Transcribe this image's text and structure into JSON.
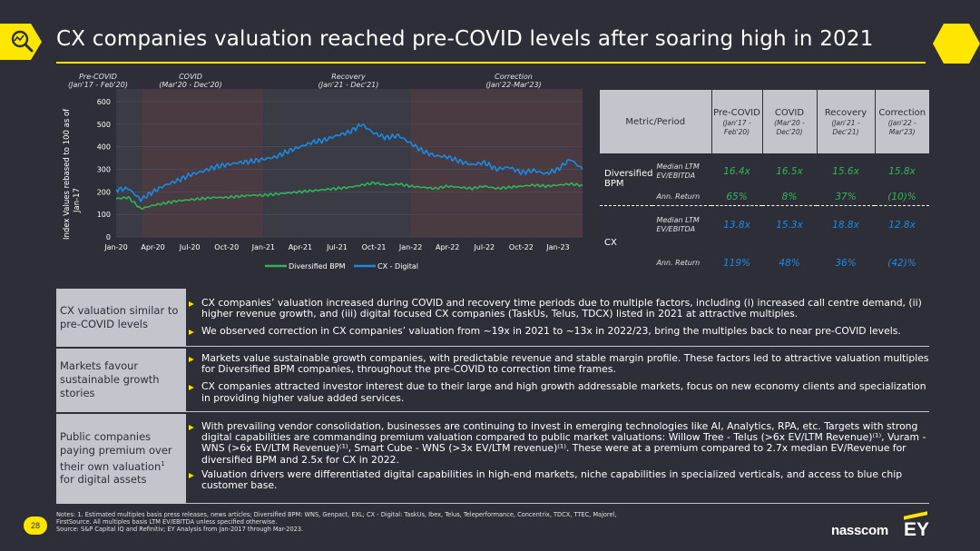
{
  "page": {
    "title": "CX companies valuation reached pre-COVID levels after soaring high in 2021",
    "page_number": "28"
  },
  "brand": {
    "accent": "#ffe600",
    "background": "#2e2e38",
    "logo_1": "nasscom",
    "logo_2": "EY"
  },
  "chart_data": {
    "type": "line",
    "ylabel": "Index Values rebased to 100 as of Jan-17",
    "ylim": [
      0,
      600
    ],
    "yticks": [
      "0",
      "100",
      "200",
      "300",
      "400",
      "500",
      "600"
    ],
    "xticks": [
      "Jan-20",
      "Apr-20",
      "Jul-20",
      "Oct-20",
      "Jan-21",
      "Apr-21",
      "Jul-21",
      "Oct-21",
      "Jan-22",
      "Apr-22",
      "Jul-22",
      "Oct-22",
      "Jan-23"
    ],
    "periods": [
      {
        "name": "Pre-COVID",
        "range": "(Jan'17 - Feb'20)"
      },
      {
        "name": "COVID",
        "range": "(Mar'20 - Dec'20)"
      },
      {
        "name": "Recovery",
        "range": "(Jan'21 - Dec'21)"
      },
      {
        "name": "Correction",
        "range": "(Jan'22-Mar'23)"
      }
    ],
    "series": [
      {
        "name": "Diversified BPM",
        "color": "#2db757",
        "x_month_index": [
          0,
          1,
          2,
          3,
          4,
          5,
          6,
          7,
          8,
          9,
          10,
          11,
          12,
          13,
          14,
          15,
          16,
          17,
          18,
          19,
          20,
          21,
          22,
          23,
          24,
          25,
          26,
          27,
          28,
          29,
          30,
          31,
          32,
          33,
          34,
          35,
          36,
          37,
          38
        ],
        "values": [
          170,
          175,
          125,
          140,
          150,
          160,
          165,
          170,
          175,
          175,
          180,
          185,
          185,
          190,
          195,
          200,
          205,
          210,
          215,
          220,
          230,
          240,
          230,
          235,
          225,
          220,
          215,
          225,
          220,
          215,
          225,
          215,
          220,
          225,
          230,
          225,
          230,
          235,
          228
        ]
      },
      {
        "name": "CX - Digital",
        "color": "#188ce5",
        "x_month_index": [
          0,
          1,
          2,
          3,
          4,
          5,
          6,
          7,
          8,
          9,
          10,
          11,
          12,
          13,
          14,
          15,
          16,
          17,
          18,
          19,
          20,
          21,
          22,
          23,
          24,
          25,
          26,
          27,
          28,
          29,
          30,
          31,
          32,
          33,
          34,
          35,
          36,
          37,
          38
        ],
        "values": [
          210,
          215,
          165,
          200,
          230,
          250,
          275,
          290,
          310,
          320,
          330,
          335,
          345,
          355,
          380,
          400,
          420,
          430,
          450,
          465,
          500,
          460,
          440,
          450,
          415,
          380,
          360,
          355,
          335,
          320,
          330,
          300,
          310,
          285,
          295,
          280,
          300,
          345,
          300
        ]
      }
    ]
  },
  "table": {
    "header": [
      "Metric/Period"
    ],
    "cols": [
      {
        "name": "Pre-COVID",
        "range": "(Jan'17 - Feb'20)"
      },
      {
        "name": "COVID",
        "range": "(Mar'20 - Dec'20)"
      },
      {
        "name": "Recovery",
        "range": "(Jan'21 - Dec'21)"
      },
      {
        "name": "Correction",
        "range": "(Jan'22 - Mar'23)"
      }
    ],
    "groups": [
      {
        "name": "Diversified BPM",
        "rows": [
          {
            "metric": "Median LTM EV/EBITDA",
            "values": [
              "16.4x",
              "16.5x",
              "15.6x",
              "15.8x"
            ]
          },
          {
            "metric": "Ann. Return",
            "values": [
              "65%",
              "8%",
              "37%",
              "(10)%"
            ]
          }
        ]
      },
      {
        "name": "CX",
        "rows": [
          {
            "metric": "Median LTM EV/EBITDA",
            "values": [
              "13.8x",
              "15.3x",
              "18.8x",
              "12.8x"
            ]
          },
          {
            "metric": "Ann. Return",
            "values": [
              "119%",
              "48%",
              "36%",
              "(42)%"
            ]
          }
        ]
      }
    ]
  },
  "insights": [
    {
      "label": "CX valuation similar to pre-COVID levels",
      "bullets": [
        "CX companies’ valuation increased during COVID and recovery time periods due to multiple factors, including (i) increased call centre demand, (ii) higher revenue growth, and (iii) digital focused CX companies (TaskUs, Telus, TDCX) listed in 2021 at attractive multiples.",
        "We observed correction in CX companies’ valuation from ~19x in 2021 to ~13x in 2022/23, bring the multiples back to near pre-COVID levels."
      ]
    },
    {
      "label": "Markets favour sustainable growth stories",
      "bullets": [
        "Markets value sustainable growth companies, with predictable revenue and stable margin profile. These factors led to attractive valuation multiples for Diversified BPM companies, throughout the pre-COVID to correction time frames.",
        "CX companies attracted investor interest due to their large and high growth addressable markets, focus on new economy clients and specialization in providing higher value added services."
      ]
    },
    {
      "label": "Public companies paying premium over their own valuation",
      "label_sup": "1",
      "label_tail": " for digital assets",
      "bullets": [
        "With prevailing vendor consolidation, businesses are continuing to invest in emerging technologies like AI, Analytics, RPA, etc. Targets with strong digital capabilities are commanding premium valuation compared to public market valuations: Willow Tree - Telus (>6x EV/LTM Revenue)⁽¹⁾, Vuram - WNS (>6x EV/LTM Revenue)⁽¹⁾, Smart Cube - WNS (>3x EV/LTM revenue)⁽¹⁾. These were at a premium compared to 2.7x median EV/Revenue for diversified BPM and 2.5x for CX in 2022.",
        "Valuation drivers were differentiated digital capabilities in high-end markets, niche capabilities in specialized verticals, and access to blue chip customer base."
      ]
    }
  ],
  "notes": [
    "Notes: 1. Estimated multiples basis press releases, news articles; Diversified BPM: WNS, Genpact, EXL; CX - Digital: TaskUs, Ibex, Telus, Teleperformance, Concentrix, TDCX, TTEC, Majorel,",
    "FirstSource. All multiples basis LTM EV/EBITDA unless specified otherwise.",
    "Source: S&P Capital IQ and Refinitiv; EY Analysis from Jan-2017 through Mar-2023."
  ]
}
